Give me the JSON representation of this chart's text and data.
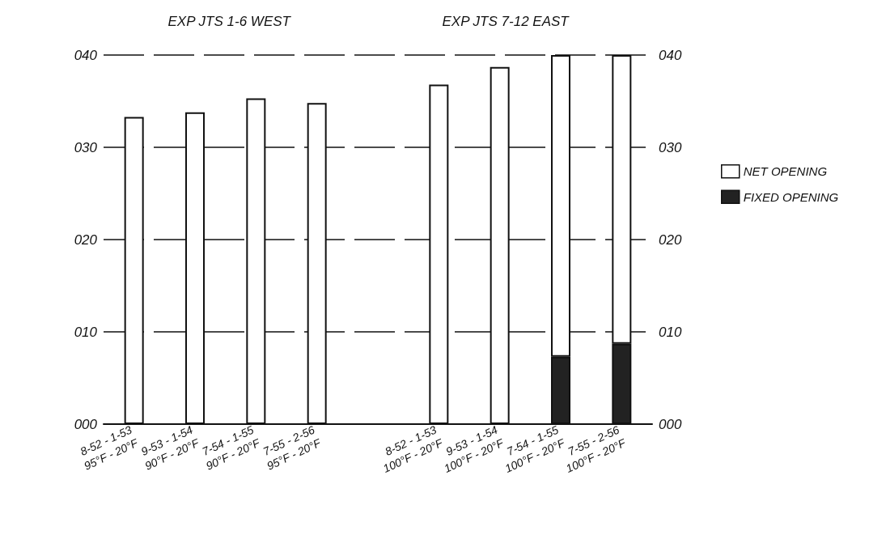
{
  "chart_data": {
    "type": "bar",
    "stacked": true,
    "categories": [
      "8-52 - 1-53\n95°F - 20°F",
      "9-53 - 1-54\n90°F - 20°F",
      "7-54 - 1-55\n90°F - 20°F",
      "7-55 - 2-56\n95°F - 20°F",
      null,
      "8-52 - 1-53\n100°F - 20°F",
      "9-53 - 1-54\n100°F - 20°F",
      "7-54 - 1-55\n100°F - 20°F",
      "7-55 - 2-56\n100°F - 20°F"
    ],
    "series": [
      {
        "name": "FIXED OPENING",
        "color": "#222222",
        "values": [
          0,
          0,
          0,
          0,
          null,
          0,
          0,
          7.3,
          8.7
        ]
      },
      {
        "name": "NET OPENING",
        "color": "#ffffff",
        "values": [
          33.3,
          33.8,
          35.3,
          34.8,
          null,
          36.8,
          38.7,
          32.7,
          31.3
        ]
      }
    ],
    "ylim": [
      0,
      40
    ],
    "yticks": [
      {
        "value": 0,
        "label": "000"
      },
      {
        "value": 10,
        "label": "010"
      },
      {
        "value": 20,
        "label": "020"
      },
      {
        "value": 30,
        "label": "030"
      },
      {
        "value": 40,
        "label": "040"
      }
    ],
    "y2lim": [
      0,
      40
    ],
    "y2ticks": [
      {
        "value": 0,
        "label": "000"
      },
      {
        "value": 10,
        "label": "010"
      },
      {
        "value": 20,
        "label": "020"
      },
      {
        "value": 30,
        "label": "030"
      },
      {
        "value": 40,
        "label": "040"
      }
    ],
    "annotations": [
      "EXP JTS 1-6 WEST",
      "EXP JTS 7-12 EAST"
    ],
    "grid": "y",
    "legend": "right"
  }
}
